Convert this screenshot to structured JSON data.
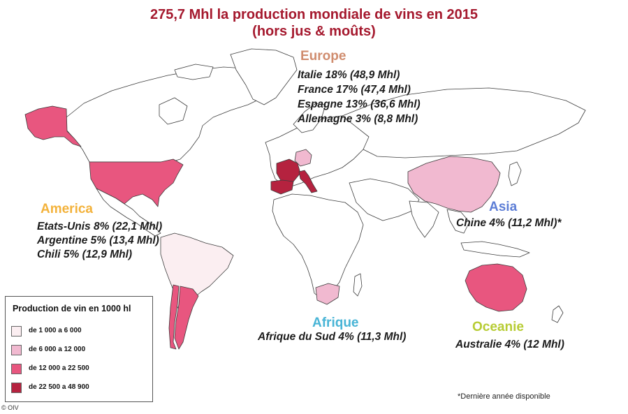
{
  "title": {
    "line1": "275,7 Mhl la production mondiale de vins en 2015",
    "line2": "(hors jus & moûts)"
  },
  "regions": {
    "europe": {
      "title": "Europe",
      "title_color": "#d08c6e",
      "stats": [
        "Italie 18% (48,9 Mhl)",
        "France 17% (47,4 Mhl)",
        "Espagne 13% (36,6 Mhl)",
        "Allemagne 3% (8,8 Mhl)"
      ]
    },
    "america": {
      "title": "America",
      "title_color": "#f3b23b",
      "stats": [
        "Etats-Unis 8% (22,1 Mhl)",
        "Argentine 5% (13,4 Mhl)",
        "Chili 5% (12,9 Mhl)"
      ]
    },
    "asia": {
      "title": "Asia",
      "title_color": "#5d7ed6",
      "stats": [
        "Chine 4% (11,2 Mhl)*"
      ]
    },
    "afrique": {
      "title": "Afrique",
      "title_color": "#48b4d6",
      "stats": [
        "Afrique du Sud 4% (11,3 Mhl)"
      ]
    },
    "oceanie": {
      "title": "Oceanie",
      "title_color": "#b7cc34",
      "stats": [
        "Australie 4% (12 Mhl)"
      ]
    }
  },
  "legend": {
    "title": "Production de vin en 1000 hl",
    "items": [
      {
        "label": "de 1 000 a 6 000",
        "color": "#fbeef1"
      },
      {
        "label": "de 6 000 a 12 000",
        "color": "#f1b9d0"
      },
      {
        "label": "de 12 000 a 22 500",
        "color": "#e8567f"
      },
      {
        "label": "de 22 500 a 48 900",
        "color": "#b5223f"
      }
    ]
  },
  "footnote": "*Dernière année disponible",
  "copyright": "© OIV"
}
